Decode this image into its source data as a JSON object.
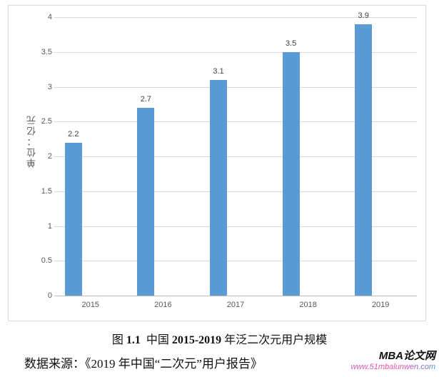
{
  "chart_data": {
    "type": "bar",
    "title": "",
    "categories": [
      "2015",
      "2016",
      "2017",
      "2018",
      "2019"
    ],
    "values": [
      2.2,
      2.7,
      3.1,
      3.5,
      3.9
    ],
    "data_labels": [
      "2.2",
      "2.7",
      "3.1",
      "3.5",
      "3.9"
    ],
    "ylabel": "单位：亿元",
    "xlabel": "",
    "ylim": [
      0,
      4
    ],
    "ytick_step": 0.5,
    "yticks": [
      "0",
      "0.5",
      "1",
      "1.5",
      "2",
      "2.5",
      "3",
      "3.5",
      "4"
    ],
    "grid": true,
    "legend_position": "none",
    "bar_color": "#5b9bd5",
    "gridline_color": "#d9d9d9",
    "axis_line_color": "#bfbfbf",
    "tick_label_color": "#595959",
    "data_label_color": "#404040"
  },
  "caption": {
    "fig_label": "图 ",
    "fig_num": "1.1",
    "mid": "  中国 ",
    "range": "2015-2019",
    "rest": " 年泛二次元用户规模"
  },
  "source": {
    "text": "数据来源：《2019 年中国“二次元”用户报告》"
  },
  "watermark": {
    "brand": "MBA论文网",
    "url": "www.51mbalunwen.com"
  }
}
